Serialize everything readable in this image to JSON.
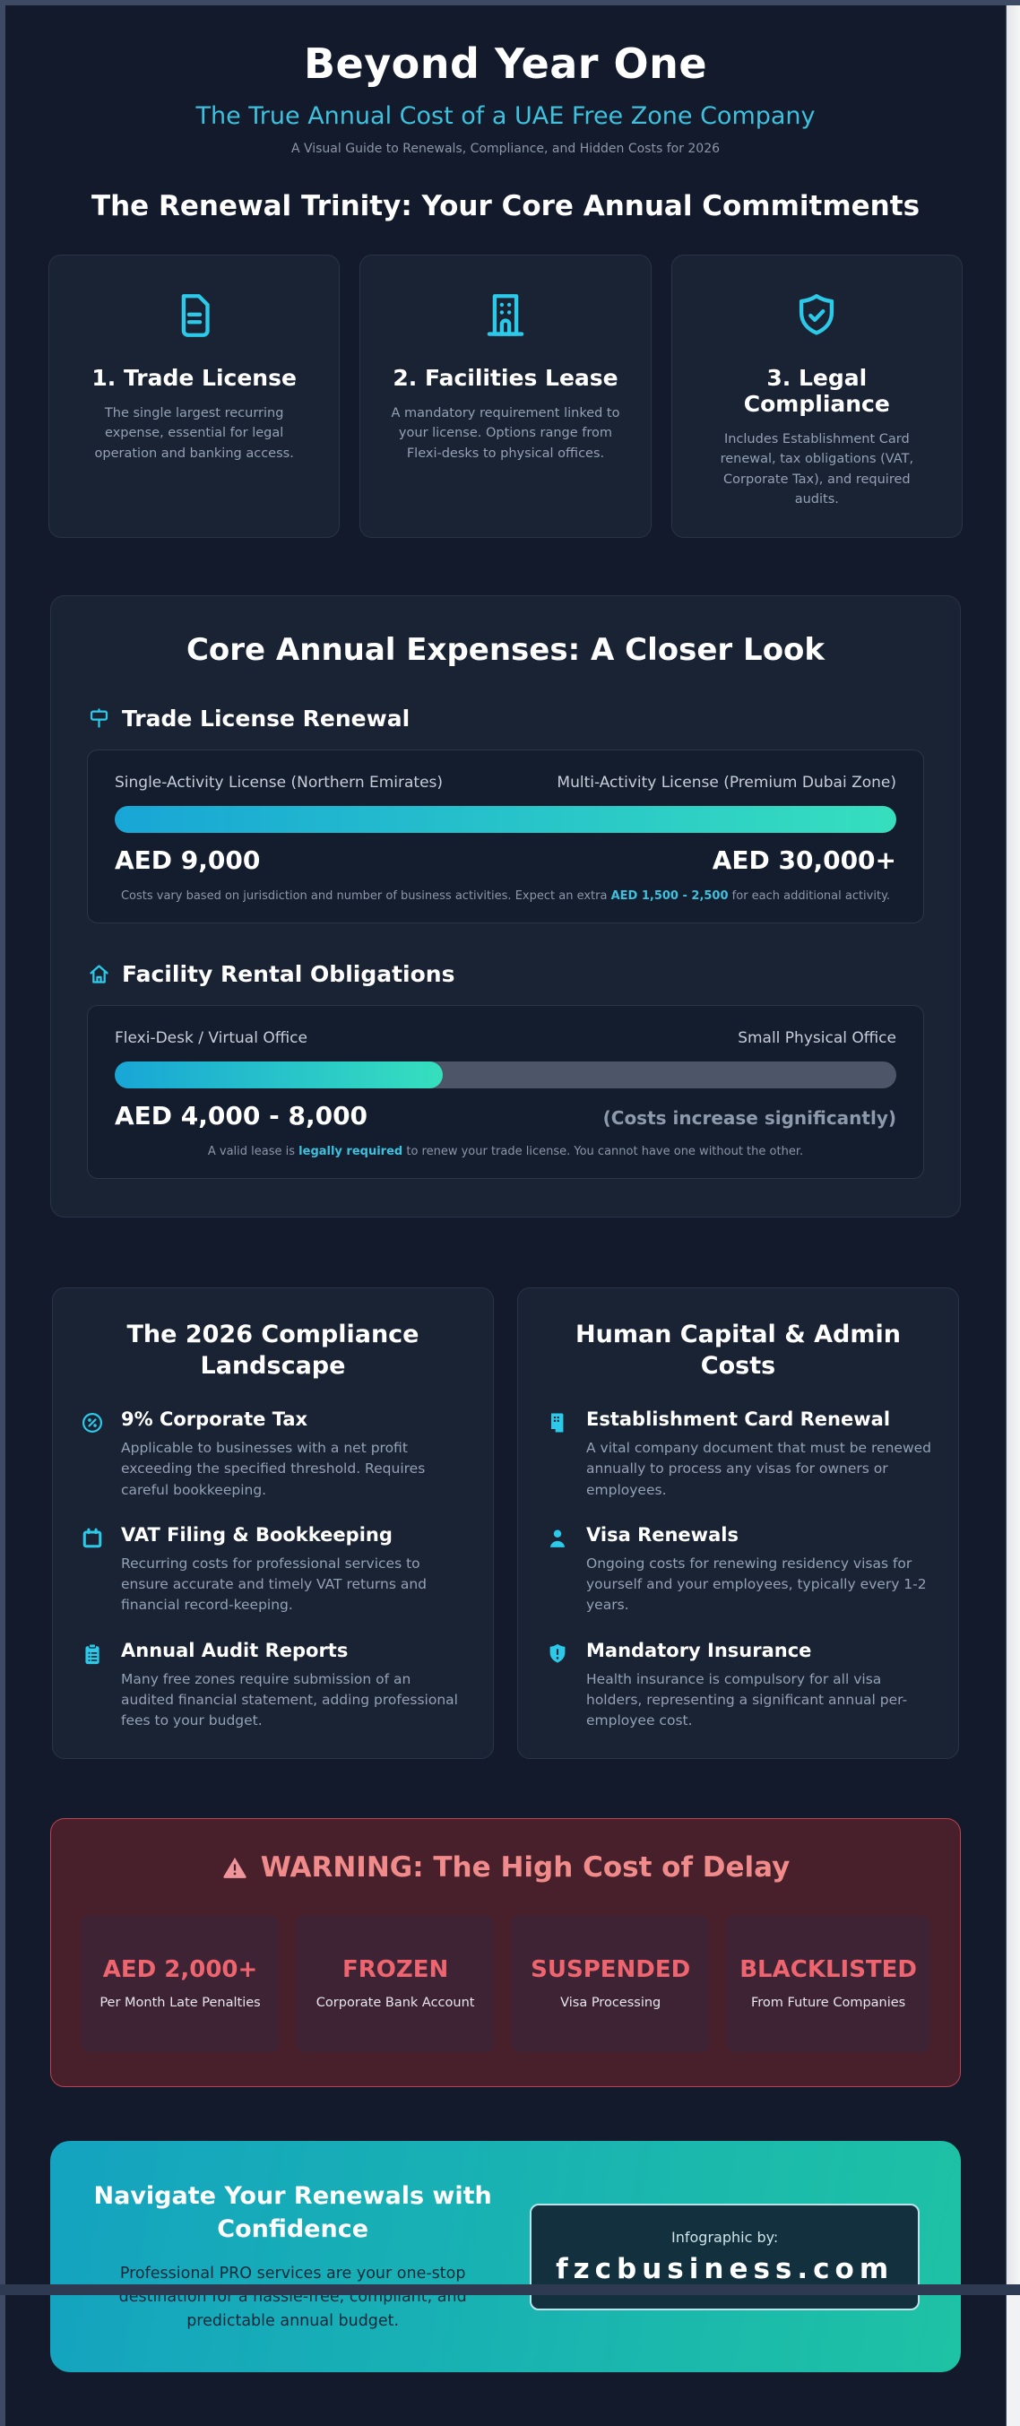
{
  "colors": {
    "page_bg": "#121a2b",
    "card_bg": "#1a2334",
    "accent_cyan": "#2cc9e8",
    "bar_gradient_start": "#18a6d6",
    "bar_gradient_end": "#36dfbe",
    "warning_bg": "#47202b",
    "warning_red": "#ee6570",
    "footer_gradient_start": "#14a3c0",
    "footer_gradient_end": "#1ec2a4"
  },
  "header": {
    "title": "Beyond Year One",
    "subtitle": "The True Annual Cost of a UAE Free Zone Company",
    "tagline": "A Visual Guide to Renewals, Compliance, and Hidden Costs for 2026"
  },
  "trinity": {
    "heading": "The Renewal Trinity: Your Core Annual Commitments",
    "cards": [
      {
        "icon": "document-icon",
        "title": "1. Trade License",
        "body": "The single largest recurring expense, essential for legal operation and banking access."
      },
      {
        "icon": "building-icon",
        "title": "2. Facilities Lease",
        "body": "A mandatory requirement linked to your license. Options range from Flexi-desks to physical offices."
      },
      {
        "icon": "shield-check-icon",
        "title": "3. Legal Compliance",
        "body": "Includes Establishment Card renewal, tax obligations (VAT, Corporate Tax), and required audits."
      }
    ]
  },
  "expenses": {
    "heading": "Core Annual Expenses: A Closer Look",
    "sections": [
      {
        "icon": "signpost-icon",
        "heading": "Trade License Renewal",
        "left_label": "Single-Activity License (Northern Emirates)",
        "right_label": "Multi-Activity License (Premium Dubai Zone)",
        "left_value": "AED 9,000",
        "right_value": "AED 30,000+",
        "fill_percent": 100,
        "note_prefix": "Costs vary based on jurisdiction and number of business activities. Expect an extra ",
        "note_highlight": "AED 1,500 - 2,500",
        "note_suffix": " for each additional activity."
      },
      {
        "icon": "house-icon",
        "heading": "Facility Rental Obligations",
        "left_label": "Flexi-Desk / Virtual Office",
        "right_label": "Small Physical Office",
        "left_value": "AED 4,000 - 8,000",
        "right_value": "(Costs increase significantly)",
        "fill_percent": 42,
        "note_prefix": "A valid lease is ",
        "note_highlight": "legally required",
        "note_suffix": " to renew your trade license. You cannot have one without the other."
      }
    ]
  },
  "compliance": {
    "heading": "The 2026 Compliance Landscape",
    "items": [
      {
        "icon": "percent-circle-icon",
        "title": "9% Corporate Tax",
        "body": "Applicable to businesses with a net profit exceeding the specified threshold. Requires careful bookkeeping."
      },
      {
        "icon": "calendar-icon",
        "title": "VAT Filing & Bookkeeping",
        "body": "Recurring costs for professional services to ensure accurate and timely VAT returns and financial record-keeping."
      },
      {
        "icon": "clipboard-icon",
        "title": "Annual Audit Reports",
        "body": "Many free zones require submission of an audited financial statement, adding professional fees to your budget."
      }
    ]
  },
  "human": {
    "heading": "Human Capital & Admin Costs",
    "items": [
      {
        "icon": "id-card-icon",
        "title": "Establishment Card Renewal",
        "body": "A vital company document that must be renewed annually to process any visas for owners or employees."
      },
      {
        "icon": "person-icon",
        "title": "Visa Renewals",
        "body": "Ongoing costs for renewing residency visas for yourself and your employees, typically every 1-2 years."
      },
      {
        "icon": "shield-exclamation-icon",
        "title": "Mandatory Insurance",
        "body": "Health insurance is compulsory for all visa holders, representing a significant annual per-employee cost."
      }
    ]
  },
  "warning": {
    "heading": "WARNING: The High Cost of Delay",
    "boxes": [
      {
        "value": "AED 2,000+",
        "label": "Per Month Late Penalties"
      },
      {
        "value": "FROZEN",
        "label": "Corporate Bank Account"
      },
      {
        "value": "SUSPENDED",
        "label": "Visa Processing"
      },
      {
        "value": "BLACKLISTED",
        "label": "From Future Companies"
      }
    ]
  },
  "footer": {
    "heading": "Navigate Your Renewals with Confidence",
    "body": "Professional PRO services are your one-stop destination for a hassle-free, compliant, and predictable annual budget.",
    "credit_label": "Infographic by:",
    "credit_site": "fzcbusiness.com"
  }
}
